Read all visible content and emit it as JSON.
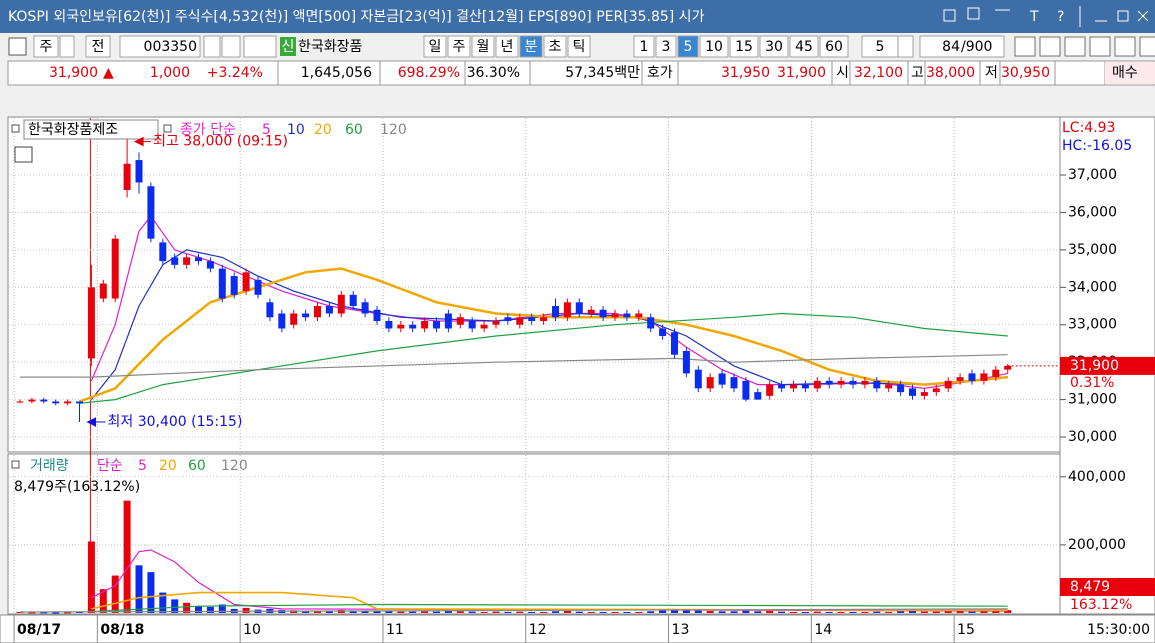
{
  "title_bar": {
    "text": "KOSPI 외국인보유[62(천)] 주식수[4,532(천)] 액면[500] 자본금[23(억)] 결산[12월] EPS[890] PER[35.85] 시가",
    "icons": [
      "T",
      "?"
    ]
  },
  "toolbar": {
    "market": "주",
    "scope": "전",
    "code": "003350",
    "badge": "신",
    "name": "한국화장품",
    "periods": [
      "일",
      "주",
      "월",
      "년",
      "분",
      "초",
      "틱"
    ],
    "period_selected": 4,
    "intervals": [
      "1",
      "3",
      "5",
      "10",
      "15",
      "30",
      "45",
      "60"
    ],
    "interval_selected": 2,
    "unit": "5",
    "count": "84",
    "count_max": "/900"
  },
  "quote_bar": [
    {
      "text": "31,900",
      "color": "#e0000b"
    },
    {
      "text": "▲",
      "color": "#e0000b"
    },
    {
      "text": "1,000",
      "color": "#e0000b"
    },
    {
      "text": "+3.24%",
      "color": "#e0000b"
    },
    {
      "text": "1,645,056",
      "color": "#000000"
    },
    {
      "text": "698.29%",
      "color": "#e0000b"
    },
    {
      "text": "36.30%",
      "color": "#000000"
    },
    {
      "text": "57,345백만",
      "color": "#000000"
    },
    {
      "text": "호가",
      "color": "#000000"
    },
    {
      "text": "31,950",
      "color": "#e0000b"
    },
    {
      "text": "31,900",
      "color": "#e0000b"
    },
    {
      "text": "시",
      "color": "#000000"
    },
    {
      "text": "32,100",
      "color": "#e0000b"
    },
    {
      "text": "고",
      "color": "#000000"
    },
    {
      "text": "38,000",
      "color": "#e0000b"
    },
    {
      "text": "저",
      "color": "#000000"
    },
    {
      "text": "30,950",
      "color": "#e0000b"
    },
    {
      "text": "매수",
      "color": "#000000"
    }
  ],
  "x_axis": {
    "xticks": [
      {
        "value": -0.5,
        "label": "08/17"
      },
      {
        "value": 6.5,
        "label": "08/18"
      },
      {
        "value": 18.5,
        "label": "10"
      },
      {
        "value": 30.5,
        "label": "11"
      },
      {
        "value": 42.5,
        "label": "12"
      },
      {
        "value": 54.5,
        "label": "13"
      },
      {
        "value": 66.5,
        "label": "14"
      },
      {
        "value": 78.5,
        "label": "15"
      }
    ],
    "time": "15:30:00"
  },
  "chart_data": [
    {
      "type": "candlestick",
      "title": "한국화장품제조",
      "ma_label": "종가 단순",
      "up_color": "#e8000b",
      "down_color": "#0a2cf0",
      "open": [
        30950,
        30950,
        31000,
        30950,
        30900,
        30950,
        32100,
        33700,
        33700,
        36600,
        37400,
        36700,
        35200,
        34800,
        34600,
        34800,
        34700,
        34500,
        34300,
        33900,
        34200,
        33600,
        33300,
        33000,
        33300,
        33200,
        33500,
        33300,
        33800,
        33600,
        33400,
        33100,
        32900,
        33000,
        32900,
        33100,
        33300,
        33000,
        33100,
        32900,
        33000,
        33200,
        33000,
        33200,
        33100,
        33500,
        33200,
        33600,
        33300,
        33400,
        33200,
        33300,
        33200,
        33200,
        32900,
        32800,
        32300,
        31800,
        31300,
        31700,
        31600,
        31500,
        31200,
        31100,
        31400,
        31300,
        31400,
        31300,
        31500,
        31400,
        31500,
        31400,
        31500,
        31300,
        31400,
        31300,
        31100,
        31200,
        31300,
        31500,
        31700,
        31500,
        31600,
        31800
      ],
      "high": [
        31000,
        31050,
        31050,
        31000,
        31000,
        30950,
        34600,
        34200,
        35400,
        38000,
        37600,
        36800,
        35300,
        34900,
        34900,
        34900,
        34800,
        34600,
        34400,
        34500,
        34300,
        33700,
        33400,
        33400,
        33400,
        33600,
        33600,
        33900,
        33900,
        33700,
        33500,
        33200,
        33100,
        33100,
        33200,
        33200,
        33400,
        33300,
        33200,
        33100,
        33200,
        33300,
        33300,
        33300,
        33300,
        33700,
        33700,
        33700,
        33500,
        33500,
        33400,
        33400,
        33400,
        33300,
        33000,
        32900,
        32400,
        31900,
        31700,
        31800,
        31700,
        31600,
        31300,
        31500,
        31500,
        31500,
        31500,
        31600,
        31600,
        31600,
        31600,
        31600,
        31600,
        31500,
        31500,
        31400,
        31300,
        31400,
        31600,
        31700,
        31800,
        31800,
        31900,
        31950
      ],
      "low": [
        30900,
        30900,
        30900,
        30850,
        30850,
        30400,
        31900,
        33600,
        33600,
        36400,
        36500,
        35200,
        34600,
        34500,
        34500,
        34600,
        34400,
        33600,
        33700,
        33800,
        33700,
        33100,
        32800,
        32900,
        33100,
        33100,
        33200,
        33200,
        33400,
        33200,
        33000,
        32800,
        32800,
        32800,
        32800,
        32800,
        32800,
        32900,
        32800,
        32800,
        32900,
        33000,
        32900,
        33000,
        33000,
        33100,
        33100,
        33200,
        33200,
        33100,
        33100,
        33100,
        33100,
        32800,
        32600,
        32100,
        31600,
        31200,
        31200,
        31300,
        31200,
        30950,
        31000,
        31000,
        31200,
        31200,
        31200,
        31200,
        31300,
        31300,
        31300,
        31300,
        31200,
        31200,
        31100,
        31000,
        31000,
        31100,
        31200,
        31400,
        31400,
        31400,
        31500,
        31700
      ],
      "close": [
        30950,
        31000,
        30950,
        30900,
        30950,
        30900,
        34000,
        34100,
        35300,
        37300,
        36800,
        35300,
        34700,
        34600,
        34800,
        34700,
        34500,
        33700,
        33800,
        34400,
        33800,
        33200,
        32900,
        33300,
        33200,
        33500,
        33300,
        33800,
        33500,
        33300,
        33100,
        32900,
        33000,
        32900,
        33100,
        32900,
        32900,
        33200,
        32900,
        33000,
        33100,
        33100,
        33200,
        33100,
        33200,
        33200,
        33600,
        33300,
        33400,
        33200,
        33300,
        33200,
        33300,
        32900,
        32700,
        32200,
        31700,
        31300,
        31600,
        31400,
        31300,
        31000,
        31000,
        31400,
        31300,
        31400,
        31300,
        31500,
        31400,
        31500,
        31400,
        31500,
        31300,
        31400,
        31200,
        31100,
        31200,
        31300,
        31500,
        31600,
        31500,
        31700,
        31800,
        31900
      ],
      "series": [
        {
          "name": "5",
          "color": "#e020c8",
          "x": [
            6,
            8,
            10,
            11,
            13,
            16,
            19,
            22,
            26,
            30,
            35,
            40,
            45,
            50,
            53,
            56,
            59,
            62,
            66,
            72,
            76,
            80,
            83
          ],
          "values": [
            31500,
            33000,
            35500,
            35900,
            35000,
            34700,
            34300,
            33900,
            33500,
            33300,
            33100,
            33100,
            33300,
            33300,
            33100,
            32400,
            31800,
            31400,
            31400,
            31450,
            31300,
            31500,
            31700
          ]
        },
        {
          "name": "10",
          "color": "#2030c8",
          "x": [
            6,
            8,
            10,
            12,
            14,
            17,
            20,
            23,
            27,
            32,
            40,
            47,
            52,
            56,
            60,
            64,
            70,
            76,
            83
          ],
          "values": [
            31000,
            31800,
            33500,
            34600,
            35000,
            34800,
            34300,
            33900,
            33500,
            33200,
            33100,
            33300,
            33200,
            32700,
            31900,
            31400,
            31450,
            31400,
            31600
          ]
        },
        {
          "name": "20",
          "color": "#f0a800",
          "x": [
            5,
            8,
            12,
            16,
            20,
            24,
            27,
            30,
            35,
            40,
            45,
            52,
            56,
            60,
            64,
            68,
            72,
            76,
            80,
            83
          ],
          "values": [
            30950,
            31300,
            32600,
            33600,
            34000,
            34400,
            34500,
            34200,
            33600,
            33300,
            33200,
            33200,
            33000,
            32700,
            32300,
            31800,
            31500,
            31400,
            31500,
            31600
          ]
        },
        {
          "name": "60",
          "color": "#20a040",
          "x": [
            5,
            8,
            12,
            20,
            30,
            40,
            50,
            60,
            64,
            70,
            76,
            83
          ],
          "values": [
            30900,
            31000,
            31400,
            31800,
            32300,
            32700,
            33000,
            33200,
            33300,
            33200,
            32900,
            32700
          ]
        },
        {
          "name": "120",
          "color": "#888888",
          "x": [
            0,
            6,
            20,
            40,
            55,
            60,
            70,
            83
          ],
          "values": [
            31600,
            31600,
            31800,
            32000,
            32100,
            32000,
            32100,
            32200
          ]
        }
      ],
      "ylim": [
        29600,
        38550
      ],
      "yticks": [
        {
          "value": 30000,
          "label": "30,000"
        },
        {
          "value": 31000,
          "label": "31,000"
        },
        {
          "value": 32000,
          "label": "32,000"
        },
        {
          "value": 33000,
          "label": "33,000"
        },
        {
          "value": 34000,
          "label": "34,000"
        },
        {
          "value": 35000,
          "label": "35,000"
        },
        {
          "value": 36000,
          "label": "36,000"
        },
        {
          "value": 37000,
          "label": "37,000"
        }
      ],
      "annotations": [
        {
          "text": "최고 38,000 (09:15)",
          "color": "#e0000b"
        },
        {
          "text": "최저 30,400 (15:15)",
          "color": "#1010e0"
        }
      ],
      "lc": {
        "text": "LC:4.93",
        "color": "#e0000b"
      },
      "hc": {
        "text": "HC:-16.05",
        "color": "#1010e0"
      },
      "last_price": {
        "value": 31900,
        "label": "31,900",
        "change": "0.31%"
      }
    },
    {
      "type": "volume",
      "title": "거래량",
      "ma_label": "단순",
      "info": "8,479주(163.12%)",
      "values": [
        3000,
        2000,
        2000,
        1500,
        2000,
        4000,
        210000,
        70000,
        110000,
        330000,
        140000,
        120000,
        60000,
        40000,
        30000,
        20000,
        18000,
        25000,
        12000,
        15000,
        10000,
        12000,
        9000,
        8000,
        6000,
        7000,
        5000,
        9000,
        6000,
        5000,
        6000,
        5000,
        4000,
        4000,
        5000,
        4000,
        7000,
        5000,
        4000,
        3000,
        4000,
        3000,
        4000,
        3000,
        3000,
        5000,
        6000,
        4000,
        3000,
        3000,
        3000,
        3000,
        3000,
        5000,
        8000,
        12000,
        10000,
        9000,
        6000,
        5000,
        5000,
        7000,
        5000,
        6000,
        4000,
        3000,
        3000,
        4000,
        3000,
        3000,
        3000,
        3000,
        4000,
        3000,
        5000,
        6000,
        4000,
        4000,
        5000,
        6000,
        4000,
        5000,
        6000,
        8479
      ],
      "series": [
        {
          "name": "5",
          "color": "#e020c8",
          "x": [
            6,
            8,
            10,
            11,
            13,
            15,
            18,
            22,
            83
          ],
          "values": [
            45000,
            80000,
            180000,
            185000,
            150000,
            90000,
            25000,
            12000,
            6000
          ]
        },
        {
          "name": "20",
          "color": "#f0a800",
          "x": [
            6,
            10,
            15,
            22,
            28,
            30,
            83
          ],
          "values": [
            12000,
            45000,
            60000,
            60000,
            45000,
            12000,
            8000
          ]
        },
        {
          "name": "60",
          "color": "#20a040",
          "x": [
            6,
            15,
            30,
            83
          ],
          "values": [
            4000,
            20000,
            25000,
            20000
          ]
        },
        {
          "name": "120",
          "color": "#888888",
          "x": [
            0,
            83
          ],
          "values": [
            3000,
            12000
          ]
        }
      ],
      "ylim": [
        0,
        464000
      ],
      "yticks": [
        {
          "value": 200000,
          "label": "200,000"
        },
        {
          "value": 400000,
          "label": "400,000"
        }
      ],
      "last": {
        "value": 8479,
        "label": "8,479",
        "change": "163.12%"
      }
    }
  ]
}
